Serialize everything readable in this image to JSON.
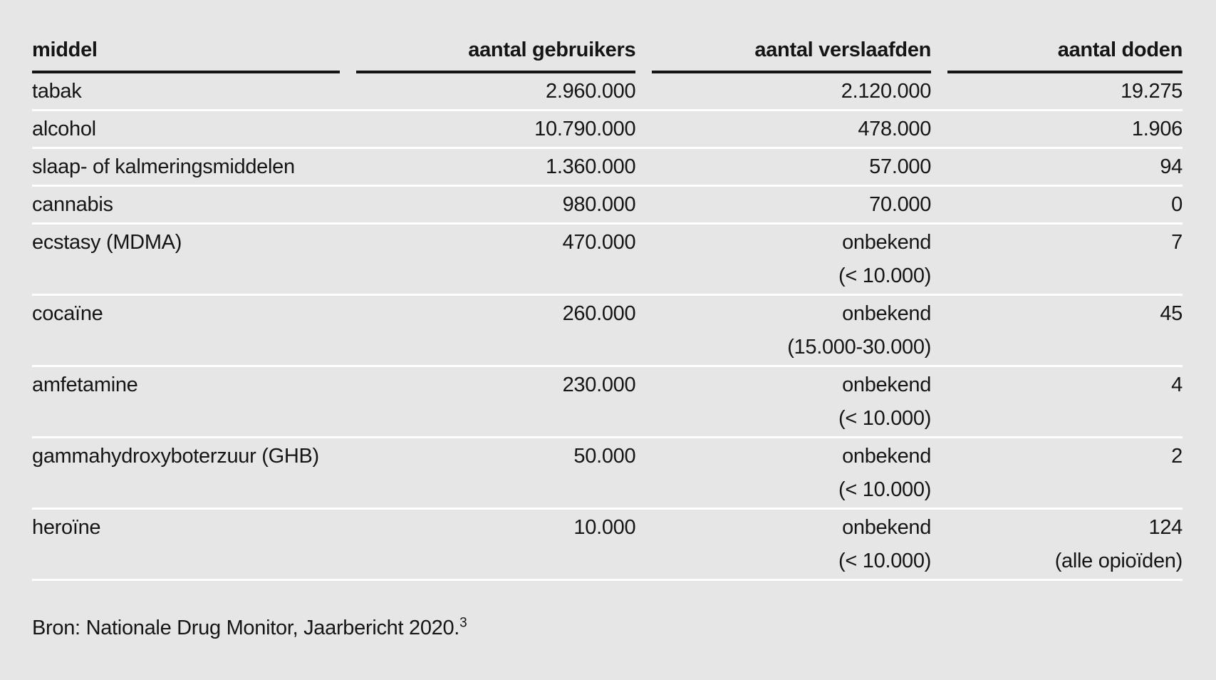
{
  "colors": {
    "background": "#e7e6e6",
    "text": "#151515",
    "header_rule": "#151515",
    "row_separator": "#ffffff"
  },
  "chart_data": {
    "type": "table",
    "title": "",
    "columns": [
      {
        "label": "middel",
        "align": "left"
      },
      {
        "label": "aantal gebruikers",
        "align": "right"
      },
      {
        "label": "aantal verslaafden",
        "align": "right"
      },
      {
        "label": "aantal doden",
        "align": "right"
      }
    ],
    "rows": [
      {
        "cells": [
          {
            "text": "tabak"
          },
          {
            "text": "2.960.000"
          },
          {
            "text": "2.120.000"
          },
          {
            "text": "19.275"
          }
        ]
      },
      {
        "cells": [
          {
            "text": "alcohol"
          },
          {
            "text": "10.790.000"
          },
          {
            "text": "478.000"
          },
          {
            "text": "1.906"
          }
        ]
      },
      {
        "cells": [
          {
            "text": "slaap- of kalmeringsmiddelen"
          },
          {
            "text": "1.360.000"
          },
          {
            "text": "57.000"
          },
          {
            "text": "94"
          }
        ]
      },
      {
        "cells": [
          {
            "text": "cannabis"
          },
          {
            "text": "980.000"
          },
          {
            "text": "70.000"
          },
          {
            "text": "0"
          }
        ]
      },
      {
        "cells": [
          {
            "text": "ecstasy (MDMA)"
          },
          {
            "text": "470.000"
          },
          {
            "text": "onbekend",
            "note": "(< 10.000)"
          },
          {
            "text": "7"
          }
        ]
      },
      {
        "cells": [
          {
            "text": "cocaïne"
          },
          {
            "text": "260.000"
          },
          {
            "text": "onbekend",
            "note": "(15.000-30.000)"
          },
          {
            "text": "45"
          }
        ]
      },
      {
        "cells": [
          {
            "text": "amfetamine"
          },
          {
            "text": "230.000"
          },
          {
            "text": "onbekend",
            "note": "(< 10.000)"
          },
          {
            "text": "4"
          }
        ]
      },
      {
        "cells": [
          {
            "text": "gammahydroxyboterzuur (GHB)"
          },
          {
            "text": "50.000"
          },
          {
            "text": "onbekend",
            "note": "(< 10.000)"
          },
          {
            "text": "2"
          }
        ]
      },
      {
        "cells": [
          {
            "text": "heroïne"
          },
          {
            "text": "10.000"
          },
          {
            "text": "onbekend",
            "note": "(< 10.000)"
          },
          {
            "text": "124",
            "note": "(alle opioïden)"
          }
        ]
      }
    ],
    "source_note": {
      "text": "Bron: Nationale Drug Monitor, Jaarbericht 2020.",
      "superscript": "3"
    }
  }
}
